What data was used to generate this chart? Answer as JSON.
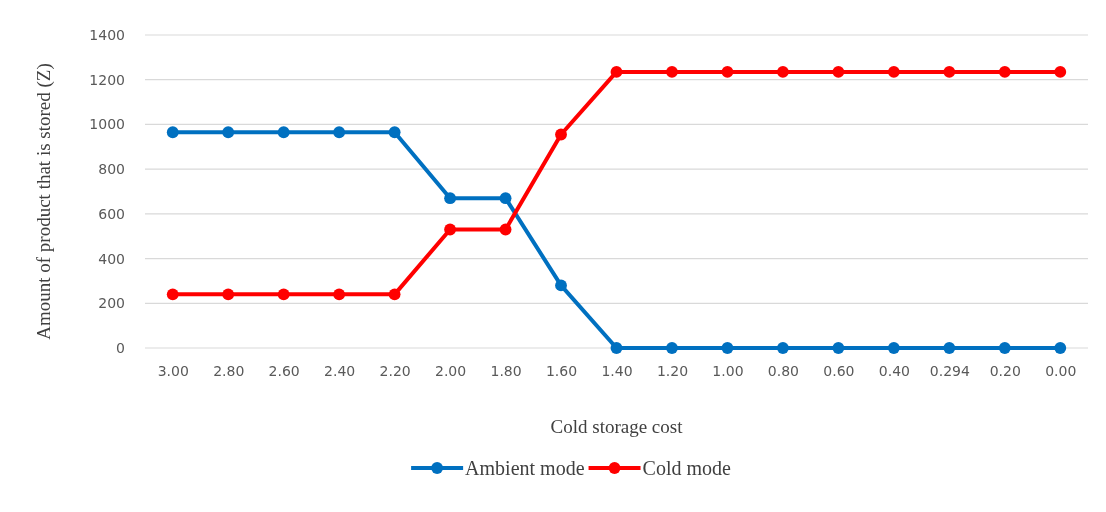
{
  "chart_data": {
    "type": "line",
    "xlabel": "Cold storage cost",
    "ylabel": "Amount of product that is stored (Z)",
    "categories": [
      "3.00",
      "2.80",
      "2.60",
      "2.40",
      "2.20",
      "2.00",
      "1.80",
      "1.60",
      "1.40",
      "1.20",
      "1.00",
      "0.80",
      "0.60",
      "0.40",
      "0.294",
      "0.20",
      "0.00"
    ],
    "series": [
      {
        "name": "Ambient mode",
        "color": "#0070c0",
        "values": [
          965,
          965,
          965,
          965,
          965,
          670,
          670,
          280,
          0,
          0,
          0,
          0,
          0,
          0,
          0,
          0,
          0
        ]
      },
      {
        "name": "Cold mode",
        "color": "#ff0000",
        "values": [
          240,
          240,
          240,
          240,
          240,
          530,
          530,
          955,
          1235,
          1235,
          1235,
          1235,
          1235,
          1235,
          1235,
          1235,
          1235
        ]
      }
    ],
    "ylim": [
      0,
      1400
    ],
    "yticks": [
      0,
      200,
      400,
      600,
      800,
      1000,
      1200,
      1400
    ],
    "grid": "y",
    "legend": "bottom",
    "marker": "circle",
    "line_style": "solid"
  }
}
